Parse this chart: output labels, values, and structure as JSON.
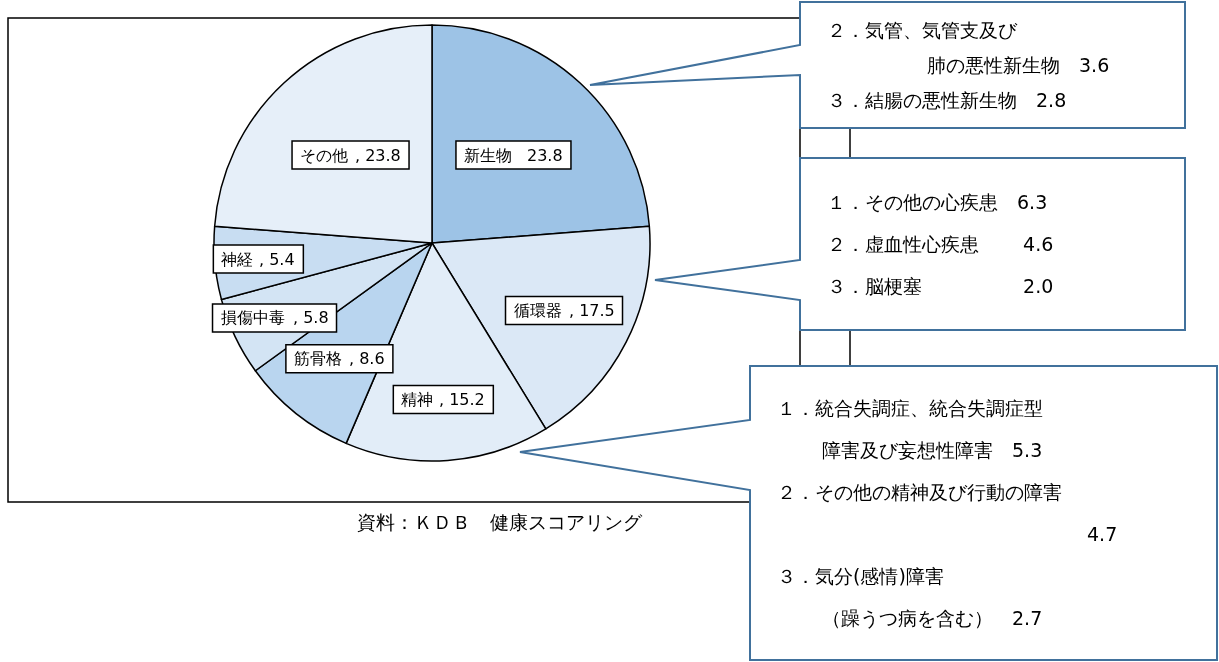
{
  "chart_data": {
    "type": "pie",
    "categories": [
      "新生物",
      "循環器",
      "精神",
      "筋骨格",
      "損傷中毒",
      "神経",
      "その他"
    ],
    "values": [
      23.8,
      17.5,
      15.2,
      8.6,
      5.8,
      5.4,
      23.8
    ],
    "colors": [
      "#9dc3e6",
      "#dbe8f6",
      "#e2edf8",
      "#b9d5ef",
      "#d3e4f4",
      "#c8ddf2",
      "#e6eff9"
    ],
    "value_labels": [
      "23.8",
      ", 17.5",
      ", 15.2",
      ", 8.6",
      ", 5.8",
      ", 5.4",
      ", 23.8"
    ],
    "legend": false,
    "annotations": [
      "２．気管、気管支及び",
      "肺の悪性新生物　3.6",
      "３．結腸の悪性新生物　2.8",
      "１．その他の心疾患　6.3",
      "２．虚血性心疾患　　 4.6",
      "３．脳梗塞　　　　　 2.0",
      "１．統合失調症、統合失調症型",
      "障害及び妄想性障害　5.3",
      "２．その他の精神及び行動の障害",
      "4.7",
      "３．気分(感情)障害",
      "（躁うつ病を含む）　2.7",
      "資料：ＫＤＢ　健康スコアリング"
    ]
  }
}
